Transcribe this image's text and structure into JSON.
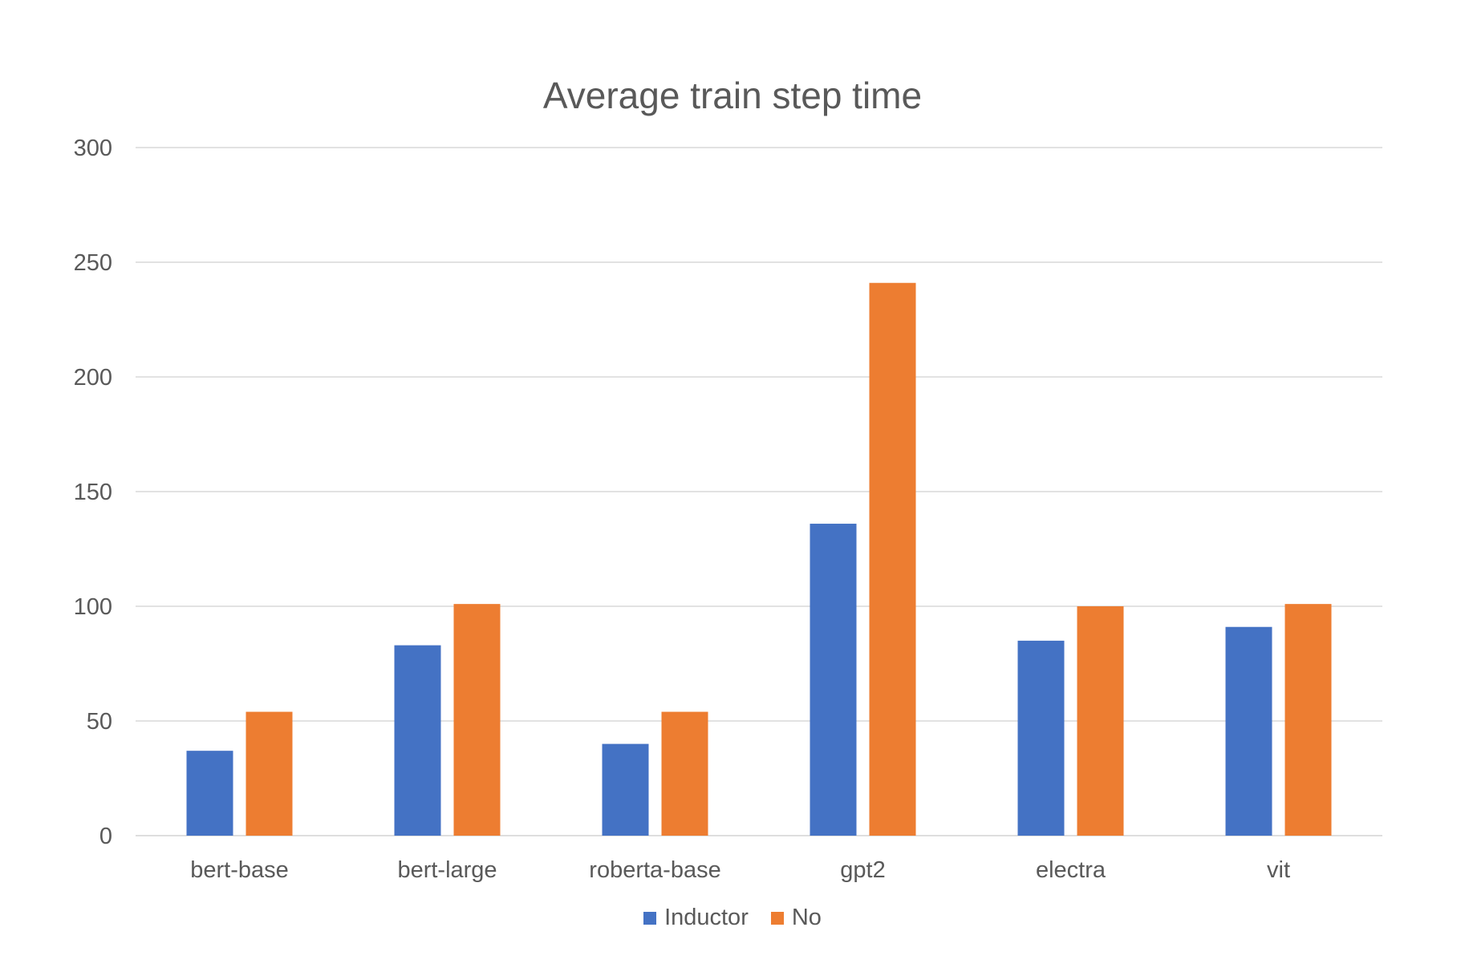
{
  "chart_data": {
    "type": "bar",
    "title": "Average train step time",
    "xlabel": "",
    "ylabel": "",
    "categories": [
      "bert-base",
      "bert-large",
      "roberta-base",
      "gpt2",
      "electra",
      "vit"
    ],
    "series": [
      {
        "name": "Inductor",
        "color": "#4472C4",
        "values": [
          37,
          83,
          40,
          136,
          85,
          91
        ]
      },
      {
        "name": "No",
        "color": "#ED7D31",
        "values": [
          54,
          101,
          54,
          241,
          100,
          101
        ]
      }
    ],
    "ylim": [
      0,
      300
    ],
    "yticks": [
      0,
      50,
      100,
      150,
      200,
      250,
      300
    ],
    "grid": true,
    "legend_position": "bottom"
  }
}
